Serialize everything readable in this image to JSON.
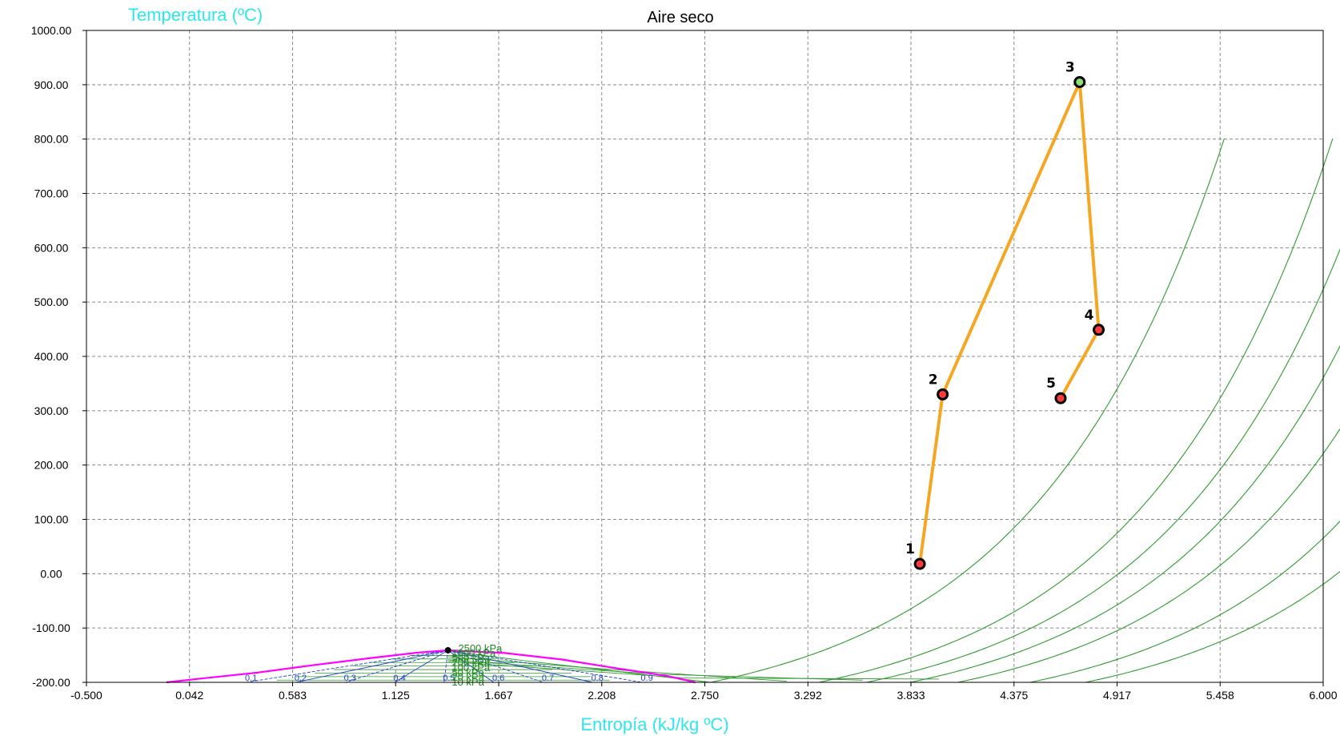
{
  "chart_data": {
    "type": "line",
    "title": "Aire seco",
    "xlabel": "Entropía (kJ/kg ºC)",
    "ylabel": "Temperatura (ºC)",
    "xlim": [
      -0.5,
      6.0
    ],
    "ylim": [
      -200,
      1000
    ],
    "x_ticks": [
      "-0.500",
      "0.042",
      "0.583",
      "1.125",
      "1.667",
      "2.208",
      "2.750",
      "3.292",
      "3.833",
      "4.375",
      "4.917",
      "5.458",
      "6.000"
    ],
    "y_ticks": [
      "-200.00",
      "-100.00",
      "0.00",
      "100.00",
      "200.00",
      "300.00",
      "400.00",
      "500.00",
      "600.00",
      "700.00",
      "800.00",
      "900.00",
      "1000.00"
    ],
    "grid": true,
    "cycle_points": [
      {
        "label": "1",
        "s": 3.88,
        "T": 18
      },
      {
        "label": "2",
        "s": 4.0,
        "T": 330
      },
      {
        "label": "3",
        "s": 4.72,
        "T": 905
      },
      {
        "label": "4",
        "s": 4.82,
        "T": 449
      },
      {
        "label": "5",
        "s": 4.62,
        "T": 323
      }
    ],
    "cycle_path": [
      "1",
      "2",
      "3",
      "4",
      "5"
    ],
    "critical_point": {
      "s": 1.4,
      "T": -141,
      "label": "2500 kPa"
    },
    "isobar_labels": [
      "2500 kPa",
      "1000 kPa",
      "500 kPa",
      "200 kPa",
      "100 kPa",
      "50 kPa",
      "20 kPa",
      "10 kPa"
    ],
    "quality_labels": [
      "0.1",
      "0.2",
      "0.3",
      "0.4",
      "0.5",
      "0.6",
      "0.7",
      "0.8",
      "0.9"
    ],
    "isobar_offsets_s": [
      0.0,
      0.57,
      0.82,
      1.05,
      1.3,
      1.68,
      1.97
    ],
    "colors": {
      "cycle": "#f5a623",
      "isobar": "#2e9a2e",
      "saturation_dome": "#ff00ff",
      "quality_lines": "#1f3fcf",
      "axis_labels": "#2ee6ee",
      "grid": "#8a8a8a",
      "marker_fill": "#ff3b3b",
      "marker_fill_top": "#8be07a"
    }
  }
}
